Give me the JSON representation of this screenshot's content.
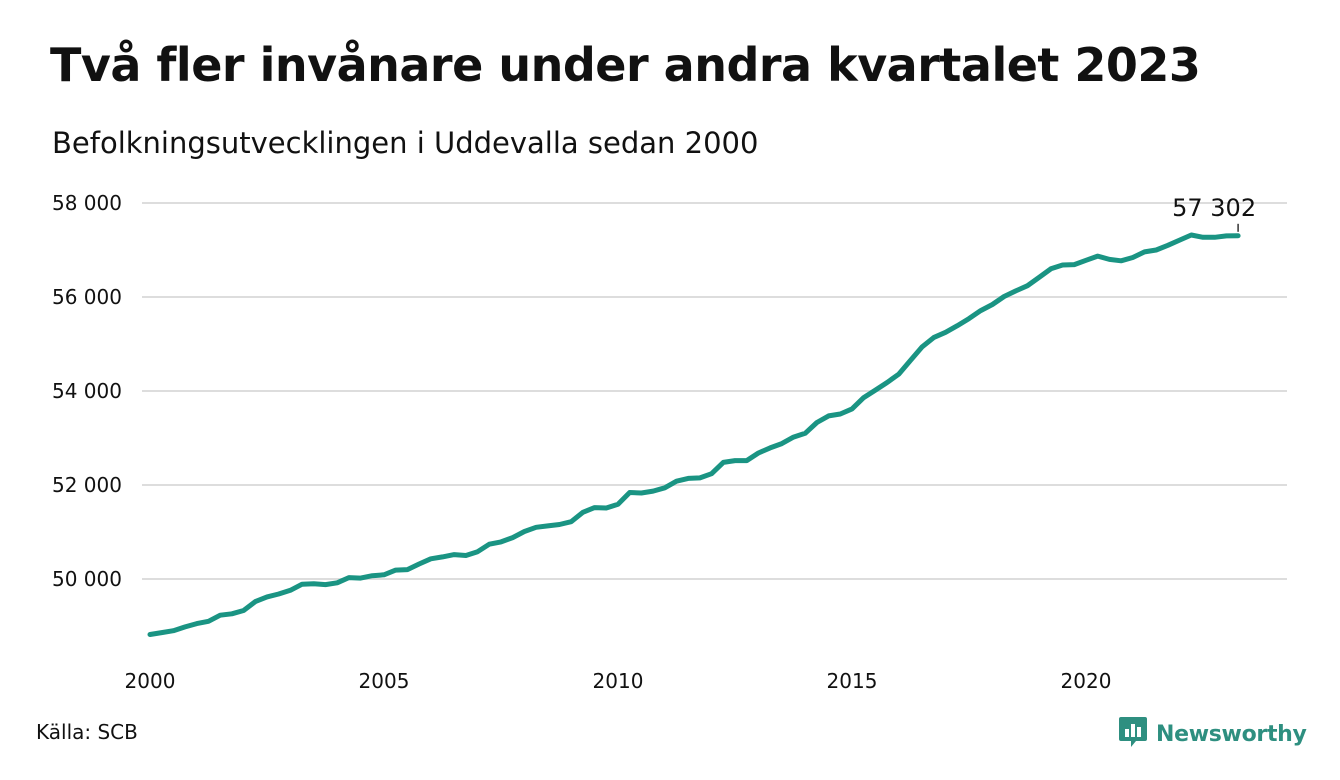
{
  "header": {
    "title": "Två fler invånare under andra kvartalet 2023",
    "subtitle": "Befolkningsutvecklingen i Uddevalla sedan 2000"
  },
  "footer": {
    "source": "Källa: SCB",
    "brand": "Newsworthy",
    "brand_icon": "newsworthy-logo-icon"
  },
  "colors": {
    "line": "#1a9483",
    "grid": "#dddddd",
    "brand": "#2e8f80"
  },
  "chart_data": {
    "type": "line",
    "title": "Två fler invånare under andra kvartalet 2023",
    "subtitle": "Befolkningsutvecklingen i Uddevalla sedan 2000",
    "xlabel": "",
    "ylabel": "",
    "x_ticks": [
      2000,
      2005,
      2010,
      2015,
      2020
    ],
    "y_ticks": [
      50000,
      52000,
      54000,
      56000,
      58000
    ],
    "y_tick_labels": [
      "50 000",
      "52 000",
      "54 000",
      "56 000",
      "58 000"
    ],
    "x_range": [
      2000,
      2024
    ],
    "ylim": [
      48600,
      58400
    ],
    "grid": true,
    "end_label": "57 302",
    "series": [
      {
        "x": [
          2000.0,
          2000.25,
          2000.5,
          2000.75,
          2001.0,
          2001.25,
          2001.5,
          2001.75,
          2002.0,
          2002.25,
          2002.5,
          2002.75,
          2003.0,
          2003.25,
          2003.5,
          2003.75,
          2004.0,
          2004.25,
          2004.5,
          2004.75,
          2005.0,
          2005.25,
          2005.5,
          2005.75,
          2006.0,
          2006.25,
          2006.5,
          2006.75,
          2007.0,
          2007.25,
          2007.5,
          2007.75,
          2008.0,
          2008.25,
          2008.5,
          2008.75,
          2009.0,
          2009.25,
          2009.5,
          2009.75,
          2010.0,
          2010.25,
          2010.5,
          2010.75,
          2011.0,
          2011.25,
          2011.5,
          2011.75,
          2012.0,
          2012.25,
          2012.5,
          2012.75,
          2013.0,
          2013.25,
          2013.5,
          2013.75,
          2014.0,
          2014.25,
          2014.5,
          2014.75,
          2015.0,
          2015.25,
          2015.5,
          2015.75,
          2016.0,
          2016.25,
          2016.5,
          2016.75,
          2017.0,
          2017.25,
          2017.5,
          2017.75,
          2018.0,
          2018.25,
          2018.5,
          2018.75,
          2019.0,
          2019.25,
          2019.5,
          2019.75,
          2020.0,
          2020.25,
          2020.5,
          2020.75,
          2021.0,
          2021.25,
          2021.5,
          2021.75,
          2022.0,
          2022.25,
          2022.5,
          2022.75,
          2023.0,
          2023.25
        ],
        "values": [
          48820,
          48860,
          48900,
          48980,
          49050,
          49100,
          49230,
          49260,
          49330,
          49520,
          49620,
          49680,
          49760,
          49890,
          49900,
          49880,
          49920,
          50030,
          50020,
          50070,
          50090,
          50190,
          50200,
          50320,
          50430,
          50470,
          50520,
          50500,
          50580,
          50740,
          50790,
          50880,
          51010,
          51100,
          51130,
          51160,
          51220,
          51420,
          51520,
          51510,
          51590,
          51840,
          51830,
          51870,
          51940,
          52080,
          52140,
          52150,
          52240,
          52480,
          52520,
          52520,
          52680,
          52790,
          52880,
          53020,
          53100,
          53330,
          53470,
          53510,
          53620,
          53860,
          54020,
          54180,
          54360,
          54650,
          54940,
          55140,
          55250,
          55390,
          55540,
          55710,
          55840,
          56010,
          56130,
          56240,
          56420,
          56600,
          56680,
          56690,
          56780,
          56870,
          56800,
          56770,
          56840,
          56960,
          57000,
          57100,
          57210,
          57320,
          57270,
          57270,
          57300,
          57302
        ]
      }
    ]
  }
}
